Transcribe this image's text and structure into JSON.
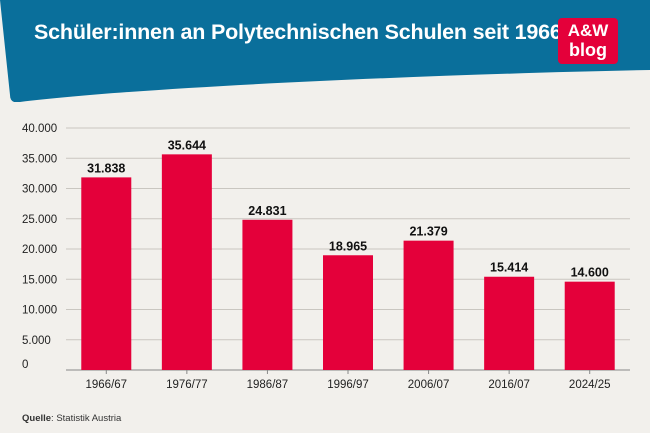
{
  "header": {
    "title": "Schüler:innen an Polytechnischen Schulen seit 1966",
    "background_color": "#0a6f9b",
    "logo": {
      "line1": "A&W",
      "line2": "blog",
      "color": "#e4003a"
    }
  },
  "footer": {
    "source_label": "Quelle",
    "source_text": ": Statistik Austria"
  },
  "chart_data": {
    "type": "bar",
    "categories": [
      "1966/67",
      "1976/77",
      "1986/87",
      "1996/97",
      "2006/07",
      "2016/07",
      "2024/25"
    ],
    "values": [
      31838,
      35644,
      24831,
      18965,
      21379,
      15414,
      14600
    ],
    "value_labels": [
      "31.838",
      "35.644",
      "24.831",
      "18.965",
      "21.379",
      "15.414",
      "14.600"
    ],
    "y_ticks": [
      0,
      5000,
      10000,
      15000,
      20000,
      25000,
      30000,
      35000,
      40000
    ],
    "y_tick_labels": [
      "0",
      "5.000",
      "10.000",
      "15.000",
      "20.000",
      "25.000",
      "30.000",
      "35.000",
      "40.000"
    ],
    "ylim": [
      0,
      40000
    ],
    "title": "Schüler:innen an Polytechnischen Schulen seit 1966",
    "xlabel": "",
    "ylabel": "",
    "bar_color": "#e4003a",
    "grid": true,
    "legend": "none"
  }
}
